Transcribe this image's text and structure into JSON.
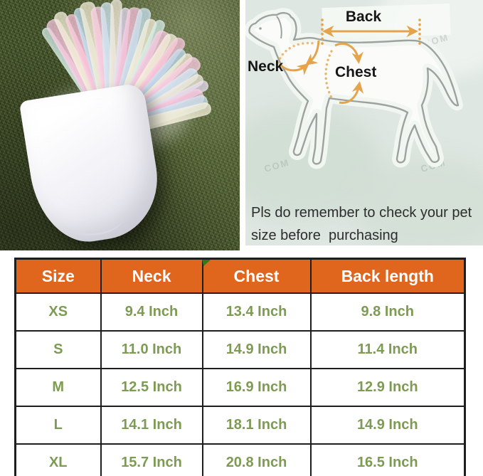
{
  "product_photo": {
    "alt": "White pet tutu dress with pastel rainbow tulle ruffles lying on green grass",
    "grass_color": "#49582e",
    "dress_color": "#ffffff",
    "tulle_colors": [
      "#cfe9e2",
      "#f6c3dc",
      "#f3eed8",
      "#f8bfd8",
      "#bcd9ec",
      "#f1ead2",
      "#f9c9e0",
      "#cde4f0",
      "#efe7d8",
      "#e3d7ee",
      "#f5c0d8",
      "#c5dfec",
      "#f2ecd6"
    ]
  },
  "measuring_guide": {
    "labels": {
      "back": "Back",
      "neck": "Neck",
      "chest": "Chest"
    },
    "note_line1": "Pls do remember to check your pet",
    "note_line2": "size before  purchasing",
    "watermark": "COM",
    "background_color": "#dee7e1",
    "arrow_color": "#e5a44c",
    "dog_outline_color": "#9ca39e"
  },
  "size_table": {
    "columns": [
      "Size",
      "Neck",
      "Chest",
      "Back length"
    ],
    "rows": [
      {
        "size": "XS",
        "neck": "9.4 Inch",
        "chest": "13.4 Inch",
        "back": "9.8 Inch"
      },
      {
        "size": "S",
        "neck": "11.0 Inch",
        "chest": "14.9 Inch",
        "back": "11.4 Inch"
      },
      {
        "size": "M",
        "neck": "12.5 Inch",
        "chest": "16.9 Inch",
        "back": "12.9 Inch"
      },
      {
        "size": "L",
        "neck": "14.1 Inch",
        "chest": "18.1 Inch",
        "back": "14.9 Inch"
      },
      {
        "size": "XL",
        "neck": "15.7 Inch",
        "chest": "20.8 Inch",
        "back": "16.5 Inch"
      }
    ],
    "header_bg": "#e0661e",
    "header_text_color": "#ffffff",
    "value_text_color": "#7d9b52",
    "border_color": "#1e1e1e",
    "flag_color": "#2c7a1c"
  }
}
